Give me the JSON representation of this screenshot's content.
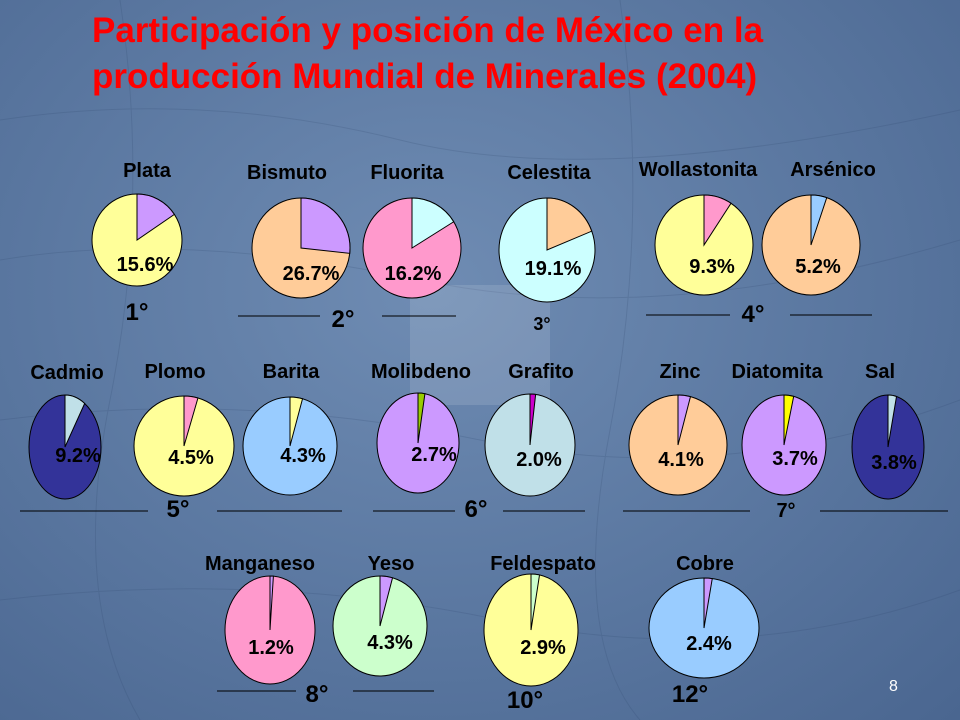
{
  "slide": {
    "title_line1": "Participación y posición de México en la",
    "title_line2": "producción Mundial de Minerales (2004)",
    "page_number": "8"
  },
  "chart_data": {
    "type": "pie",
    "title": "Participación y posición de México en la producción Mundial de Minerales (2004)",
    "minerals": [
      {
        "name": "Plata",
        "share": 15.6,
        "label": "15.6%",
        "rank": "1°",
        "color": "#cc99ff",
        "rest_color": "#ffff99"
      },
      {
        "name": "Bismuto",
        "share": 26.7,
        "label": "26.7%",
        "rank": "2°",
        "color": "#cc99ff",
        "rest_color": "#ffcc99"
      },
      {
        "name": "Fluorita",
        "share": 16.2,
        "label": "16.2%",
        "rank": "2°",
        "color": "#ccffff",
        "rest_color": "#ff99cc"
      },
      {
        "name": "Celestita",
        "share": 19.1,
        "label": "19.1%",
        "rank": "3°",
        "color": "#ffcc99",
        "rest_color": "#ccffff"
      },
      {
        "name": "Wollastonita",
        "share": 9.3,
        "label": "9.3%",
        "rank": "4°",
        "color": "#ff99cc",
        "rest_color": "#ffff99"
      },
      {
        "name": "Arsénico",
        "share": 5.2,
        "label": "5.2%",
        "rank": "4°",
        "color": "#99ccff",
        "rest_color": "#ffcc99"
      },
      {
        "name": "Cadmio",
        "share": 9.2,
        "label": "9.2%",
        "rank": "5°",
        "color": "#c0e0e8",
        "rest_color": "#333399"
      },
      {
        "name": "Plomo",
        "share": 4.5,
        "label": "4.5%",
        "rank": "5°",
        "color": "#ff99cc",
        "rest_color": "#ffff99"
      },
      {
        "name": "Barita",
        "share": 4.3,
        "label": "4.3%",
        "rank": "5°",
        "color": "#ffff99",
        "rest_color": "#99ccff"
      },
      {
        "name": "Molibdeno",
        "share": 2.7,
        "label": "2.7%",
        "rank": "6°",
        "color": "#99cc00",
        "rest_color": "#cc99ff"
      },
      {
        "name": "Grafito",
        "share": 2.0,
        "label": "2.0%",
        "rank": "6°",
        "color": "#cc00cc",
        "rest_color": "#c0e0e8"
      },
      {
        "name": "Zinc",
        "share": 4.1,
        "label": "4.1%",
        "rank": "7°",
        "color": "#cc99ff",
        "rest_color": "#ffcc99"
      },
      {
        "name": "Diatomita",
        "share": 3.7,
        "label": "3.7%",
        "rank": "7°",
        "color": "#ffff00",
        "rest_color": "#cc99ff"
      },
      {
        "name": "Sal",
        "share": 3.8,
        "label": "3.8%",
        "rank": "7°",
        "color": "#c0e0e8",
        "rest_color": "#333399"
      },
      {
        "name": "Manganeso",
        "share": 1.2,
        "label": "1.2%",
        "rank": "8°",
        "color": "#cc99ff",
        "rest_color": "#ff99cc"
      },
      {
        "name": "Yeso",
        "share": 4.3,
        "label": "4.3%",
        "rank": "8°",
        "color": "#cc99ff",
        "rest_color": "#ccffcc"
      },
      {
        "name": "Feldespato",
        "share": 2.9,
        "label": "2.9%",
        "rank": "10°",
        "color": "#ccffcc",
        "rest_color": "#ffff99"
      },
      {
        "name": "Cobre",
        "share": 2.4,
        "label": "2.4%",
        "rank": "12°",
        "color": "#cc99ff",
        "rest_color": "#99ccff"
      }
    ]
  }
}
